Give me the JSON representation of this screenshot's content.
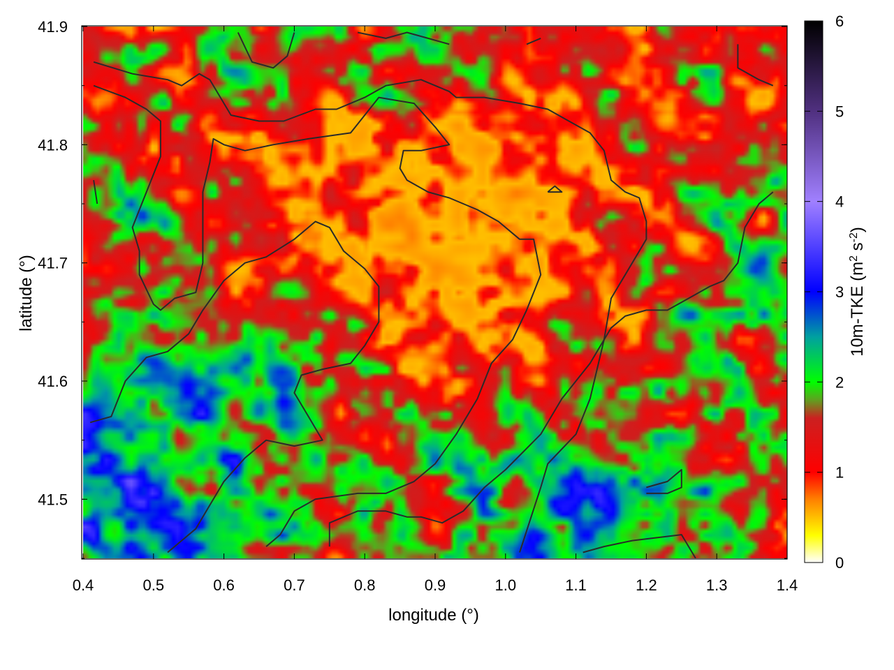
{
  "chart_data": {
    "type": "heatmap",
    "xlabel": "longitude (°)",
    "ylabel": "latitude (°)",
    "xlim": [
      0.4,
      1.4
    ],
    "ylim": [
      41.45,
      41.9
    ],
    "x_ticks": [
      "0.4",
      "0.5",
      "0.6",
      "0.7",
      "0.8",
      "0.9",
      "1.0",
      "1.1",
      "1.2",
      "1.3",
      "1.4"
    ],
    "y_ticks": [
      "41.5",
      "41.6",
      "41.7",
      "41.8",
      "41.9"
    ],
    "colorbar": {
      "label_prefix": "10m-TKE (m",
      "label_sup1": "2",
      "label_mid": " s",
      "label_sup2": "-2",
      "label_suffix": ")",
      "range": [
        0,
        6
      ],
      "ticks": [
        "0",
        "1",
        "2",
        "3",
        "4",
        "5",
        "6"
      ],
      "stops": [
        {
          "value": 0,
          "color": "#ffffff"
        },
        {
          "value": 0.3,
          "color": "#ffff00"
        },
        {
          "value": 0.7,
          "color": "#ff8000"
        },
        {
          "value": 1.0,
          "color": "#ff0000"
        },
        {
          "value": 1.6,
          "color": "#cc2020"
        },
        {
          "value": 1.8,
          "color": "#60a020"
        },
        {
          "value": 2.0,
          "color": "#00ff00"
        },
        {
          "value": 2.5,
          "color": "#00a0a0"
        },
        {
          "value": 3.0,
          "color": "#0000ff"
        },
        {
          "value": 4.0,
          "color": "#a080ff"
        },
        {
          "value": 5.0,
          "color": "#503080"
        },
        {
          "value": 6.0,
          "color": "#000000"
        }
      ]
    },
    "field_description": "10 m turbulent kinetic energy; mostly 1-1.5 (red/orange) in center, 2-3.5 (green/blue) in lower-left and lower-right, locally up to ~4",
    "contours": [
      [
        [
          0.415,
          41.87
        ],
        [
          0.47,
          41.86
        ],
        [
          0.52,
          41.855
        ],
        [
          0.54,
          41.85
        ],
        [
          0.565,
          41.86
        ],
        [
          0.58,
          41.855
        ],
        [
          0.61,
          41.825
        ],
        [
          0.65,
          41.82
        ],
        [
          0.685,
          41.82
        ],
        [
          0.73,
          41.83
        ],
        [
          0.76,
          41.83
        ],
        [
          0.8,
          41.84
        ],
        [
          0.83,
          41.85
        ],
        [
          0.88,
          41.855
        ],
        [
          0.92,
          41.845
        ],
        [
          0.93,
          41.84
        ],
        [
          0.97,
          41.84
        ],
        [
          1.02,
          41.835
        ],
        [
          1.06,
          41.83
        ],
        [
          1.09,
          41.82
        ],
        [
          1.12,
          41.81
        ],
        [
          1.14,
          41.795
        ],
        [
          1.15,
          41.77
        ],
        [
          1.17,
          41.76
        ],
        [
          1.19,
          41.755
        ],
        [
          1.2,
          41.735
        ],
        [
          1.2,
          41.72
        ],
        [
          1.17,
          41.69
        ],
        [
          1.15,
          41.67
        ],
        [
          1.14,
          41.635
        ],
        [
          1.12,
          41.585
        ],
        [
          1.1,
          41.555
        ],
        [
          1.06,
          41.53
        ],
        [
          1.05,
          41.51
        ],
        [
          1.02,
          41.455
        ]
      ],
      [
        [
          0.415,
          41.85
        ],
        [
          0.46,
          41.84
        ],
        [
          0.49,
          41.83
        ],
        [
          0.51,
          41.82
        ],
        [
          0.51,
          41.79
        ],
        [
          0.49,
          41.76
        ],
        [
          0.48,
          41.745
        ],
        [
          0.47,
          41.73
        ],
        [
          0.48,
          41.71
        ],
        [
          0.48,
          41.69
        ],
        [
          0.5,
          41.665
        ],
        [
          0.51,
          41.66
        ],
        [
          0.53,
          41.67
        ],
        [
          0.56,
          41.675
        ],
        [
          0.57,
          41.7
        ],
        [
          0.57,
          41.73
        ],
        [
          0.57,
          41.76
        ],
        [
          0.58,
          41.785
        ],
        [
          0.585,
          41.805
        ],
        [
          0.6,
          41.8
        ],
        [
          0.63,
          41.795
        ],
        [
          0.67,
          41.8
        ],
        [
          0.72,
          41.805
        ],
        [
          0.78,
          41.81
        ],
        [
          0.82,
          41.84
        ],
        [
          0.87,
          41.835
        ],
        [
          0.9,
          41.815
        ],
        [
          0.92,
          41.8
        ],
        [
          0.88,
          41.795
        ],
        [
          0.855,
          41.795
        ],
        [
          0.85,
          41.78
        ],
        [
          0.86,
          41.77
        ],
        [
          0.89,
          41.76
        ],
        [
          0.92,
          41.755
        ],
        [
          0.96,
          41.745
        ],
        [
          0.99,
          41.735
        ],
        [
          1.01,
          41.725
        ],
        [
          1.02,
          41.72
        ],
        [
          1.04,
          41.72
        ],
        [
          1.05,
          41.69
        ],
        [
          1.03,
          41.66
        ],
        [
          1.01,
          41.635
        ],
        [
          0.98,
          41.615
        ],
        [
          0.96,
          41.585
        ],
        [
          0.93,
          41.555
        ],
        [
          0.9,
          41.53
        ],
        [
          0.87,
          41.515
        ],
        [
          0.83,
          41.505
        ],
        [
          0.79,
          41.505
        ],
        [
          0.73,
          41.5
        ],
        [
          0.7,
          41.49
        ],
        [
          0.68,
          41.47
        ],
        [
          0.66,
          41.46
        ]
      ],
      [
        [
          0.41,
          41.565
        ],
        [
          0.44,
          41.57
        ],
        [
          0.46,
          41.6
        ],
        [
          0.49,
          41.62
        ],
        [
          0.52,
          41.625
        ],
        [
          0.55,
          41.64
        ],
        [
          0.57,
          41.66
        ],
        [
          0.6,
          41.685
        ],
        [
          0.63,
          41.7
        ],
        [
          0.66,
          41.705
        ],
        [
          0.7,
          41.72
        ],
        [
          0.73,
          41.735
        ],
        [
          0.75,
          41.73
        ],
        [
          0.77,
          41.71
        ],
        [
          0.8,
          41.695
        ],
        [
          0.82,
          41.68
        ],
        [
          0.82,
          41.65
        ],
        [
          0.8,
          41.63
        ],
        [
          0.78,
          41.615
        ],
        [
          0.74,
          41.61
        ],
        [
          0.71,
          41.605
        ],
        [
          0.7,
          41.59
        ],
        [
          0.72,
          41.57
        ],
        [
          0.74,
          41.55
        ],
        [
          0.7,
          41.545
        ],
        [
          0.66,
          41.55
        ],
        [
          0.63,
          41.535
        ],
        [
          0.6,
          41.515
        ],
        [
          0.58,
          41.495
        ],
        [
          0.56,
          41.475
        ],
        [
          0.54,
          41.465
        ],
        [
          0.52,
          41.455
        ]
      ],
      [
        [
          0.75,
          41.46
        ],
        [
          0.75,
          41.48
        ],
        [
          0.79,
          41.49
        ],
        [
          0.83,
          41.49
        ],
        [
          0.86,
          41.485
        ],
        [
          0.88,
          41.485
        ],
        [
          0.91,
          41.48
        ],
        [
          0.94,
          41.49
        ],
        [
          0.97,
          41.51
        ],
        [
          1.0,
          41.525
        ],
        [
          1.05,
          41.555
        ],
        [
          1.08,
          41.585
        ],
        [
          1.12,
          41.615
        ],
        [
          1.15,
          41.645
        ],
        [
          1.17,
          41.655
        ],
        [
          1.2,
          41.66
        ],
        [
          1.23,
          41.66
        ],
        [
          1.26,
          41.67
        ],
        [
          1.29,
          41.68
        ],
        [
          1.31,
          41.685
        ],
        [
          1.33,
          41.7
        ],
        [
          1.34,
          41.73
        ],
        [
          1.36,
          41.75
        ],
        [
          1.38,
          41.76
        ]
      ],
      [
        [
          1.11,
          41.455
        ],
        [
          1.14,
          41.46
        ],
        [
          1.18,
          41.465
        ],
        [
          1.25,
          41.47
        ],
        [
          1.27,
          41.45
        ]
      ],
      [
        [
          1.2,
          41.51
        ],
        [
          1.23,
          41.515
        ],
        [
          1.25,
          41.525
        ],
        [
          1.25,
          41.51
        ],
        [
          1.23,
          41.505
        ],
        [
          1.2,
          41.505
        ]
      ],
      [
        [
          1.06,
          41.76
        ],
        [
          1.07,
          41.765
        ],
        [
          1.08,
          41.76
        ],
        [
          1.06,
          41.76
        ]
      ],
      [
        [
          0.62,
          41.895
        ],
        [
          0.64,
          41.87
        ],
        [
          0.67,
          41.865
        ],
        [
          0.69,
          41.875
        ],
        [
          0.7,
          41.895
        ]
      ],
      [
        [
          0.79,
          41.895
        ],
        [
          0.83,
          41.89
        ],
        [
          0.86,
          41.895
        ],
        [
          0.89,
          41.89
        ],
        [
          0.92,
          41.885
        ]
      ],
      [
        [
          1.03,
          41.885
        ],
        [
          1.05,
          41.89
        ]
      ],
      [
        [
          1.33,
          41.885
        ],
        [
          1.33,
          41.865
        ],
        [
          1.36,
          41.855
        ],
        [
          1.38,
          41.85
        ]
      ],
      [
        [
          0.415,
          41.77
        ],
        [
          0.42,
          41.75
        ]
      ]
    ]
  }
}
